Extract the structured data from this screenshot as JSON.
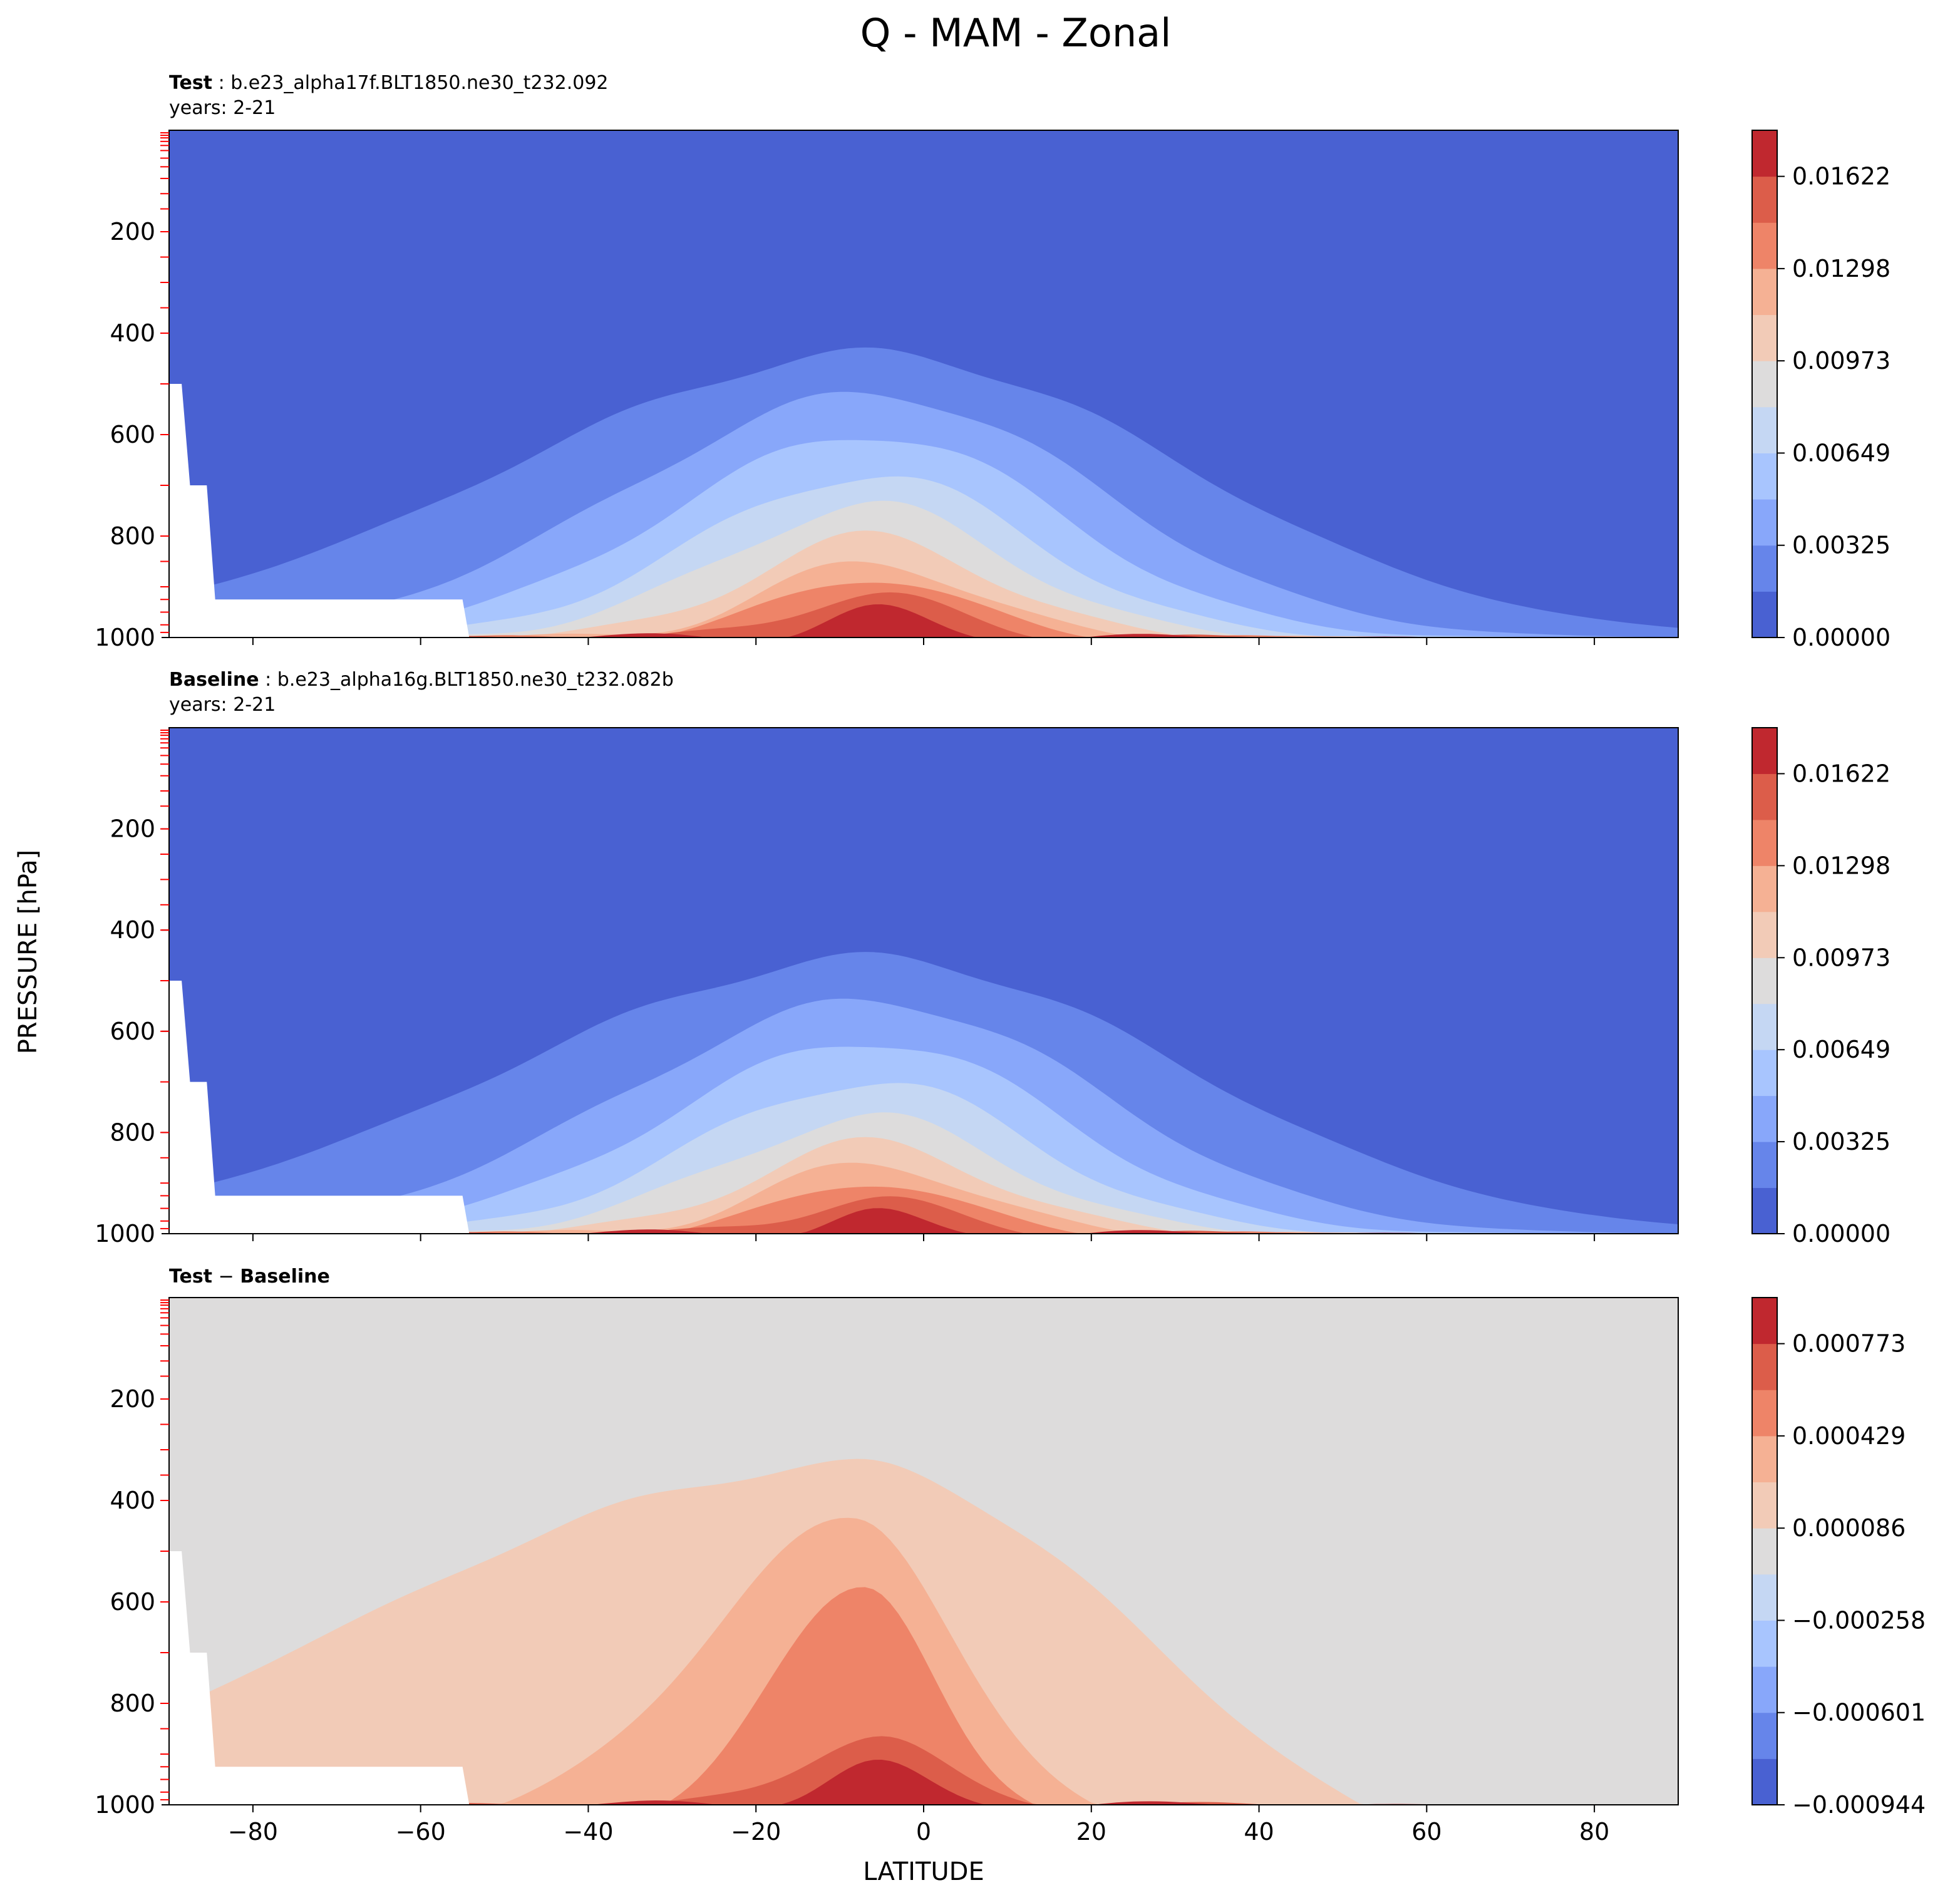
{
  "figure": {
    "title": "Q - MAM - Zonal",
    "ylabel": "PRESSURE [hPa]",
    "xlabel": "LATITUDE",
    "x_ticks": [
      "−80",
      "−60",
      "−40",
      "−20",
      "0",
      "20",
      "40",
      "60",
      "80"
    ],
    "y_ticks": [
      "200",
      "400",
      "600",
      "800",
      "1000"
    ]
  },
  "chart_data": [
    {
      "type": "heatmap",
      "title_bold": "Test",
      "title_rest": " : b.e23_alpha17f.BLT1850.ne30_t232.092",
      "subtitle": "years: 2-21",
      "xlabel": "LATITUDE",
      "ylabel": "PRESSURE [hPa]",
      "xlim": [
        -90,
        90
      ],
      "ylim": [
        1000,
        0
      ],
      "colormap": "coolwarm",
      "colorbar_levels": 11,
      "colorbar_ticks": [
        "0.01622",
        "0.01298",
        "0.00973",
        "0.00649",
        "0.00325",
        "0.00000"
      ],
      "field": "Q",
      "season": "MAM",
      "peak_latitude": -5,
      "peak_value": 0.0175
    },
    {
      "type": "heatmap",
      "title_bold": "Baseline",
      "title_rest": " : b.e23_alpha16g.BLT1850.ne30_t232.082b",
      "subtitle": "years: 2-21",
      "xlabel": "LATITUDE",
      "ylabel": "PRESSURE [hPa]",
      "xlim": [
        -90,
        90
      ],
      "ylim": [
        1000,
        0
      ],
      "colormap": "coolwarm",
      "colorbar_levels": 11,
      "colorbar_ticks": [
        "0.01622",
        "0.01298",
        "0.00973",
        "0.00649",
        "0.00325",
        "0.00000"
      ],
      "field": "Q",
      "season": "MAM",
      "peak_latitude": -5,
      "peak_value": 0.017
    },
    {
      "type": "heatmap",
      "title_bold": "Test",
      "title_minus": " − ",
      "title_bold2": "Baseline",
      "xlabel": "LATITUDE",
      "ylabel": "PRESSURE [hPa]",
      "xlim": [
        -90,
        90
      ],
      "ylim": [
        1000,
        0
      ],
      "colormap": "coolwarm",
      "colorbar_levels": 11,
      "colorbar_ticks": [
        "0.000773",
        "0.000429",
        "0.000086",
        "−0.000258",
        "−0.000601",
        "−0.000944"
      ],
      "field": "Q difference",
      "season": "MAM",
      "peak_latitude": -8,
      "peak_value": 0.00085
    }
  ],
  "colors": {
    "c0": "#4961d2",
    "c1": "#6685ea",
    "c2": "#88a7fa",
    "c3": "#a8c5fe",
    "c4": "#c5d7f3",
    "c5": "#dddcdc",
    "c6": "#f2cbb7",
    "c7": "#f5b194",
    "c8": "#ee8468",
    "c9": "#dc5d4a",
    "c10": "#c0282f",
    "topo": "#ffffff",
    "pressure_ticks": "#ff0000"
  }
}
